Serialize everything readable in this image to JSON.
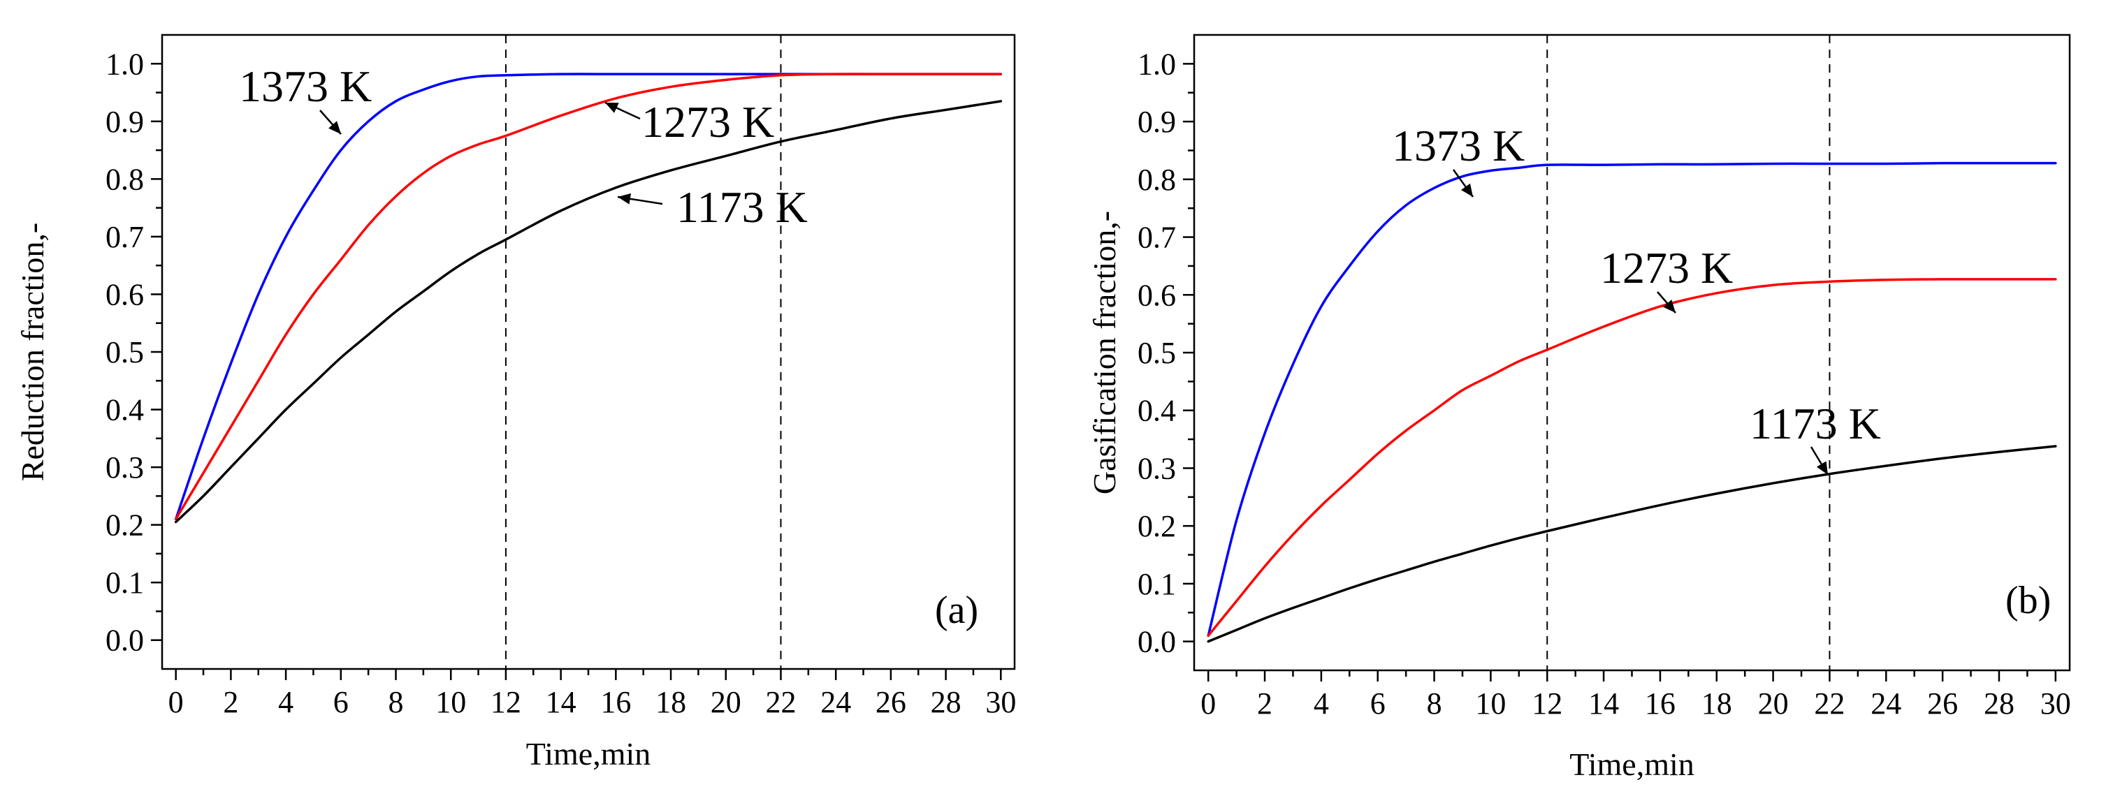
{
  "chart_data": [
    {
      "type": "line",
      "panel_label": "(a)",
      "xlabel": "Time,min",
      "ylabel": "Reduction fraction,-",
      "xlim": [
        -0.5,
        30.5
      ],
      "ylim": [
        -0.05,
        1.05
      ],
      "xticks": [
        0,
        2,
        4,
        6,
        8,
        10,
        12,
        14,
        16,
        18,
        20,
        22,
        24,
        26,
        28,
        30
      ],
      "yticks": [
        0.0,
        0.1,
        0.2,
        0.3,
        0.4,
        0.5,
        0.6,
        0.7,
        0.8,
        0.9,
        1.0
      ],
      "vlines": [
        12,
        22
      ],
      "series": [
        {
          "name": "1373 K",
          "color": "#0000ff",
          "x": [
            0,
            1,
            2,
            3,
            4,
            5,
            6,
            7,
            8,
            9,
            10,
            11,
            12,
            14,
            16,
            18,
            20,
            22,
            24,
            26,
            28,
            30
          ],
          "y": [
            0.21,
            0.35,
            0.48,
            0.6,
            0.7,
            0.78,
            0.85,
            0.9,
            0.935,
            0.955,
            0.97,
            0.978,
            0.98,
            0.982,
            0.982,
            0.982,
            0.982,
            0.982,
            0.982,
            0.982,
            0.982,
            0.982
          ]
        },
        {
          "name": "1273 K",
          "color": "#ff0000",
          "x": [
            0,
            1,
            2,
            3,
            4,
            5,
            6,
            7,
            8,
            9,
            10,
            11,
            12,
            14,
            16,
            18,
            20,
            22,
            24,
            26,
            28,
            30
          ],
          "y": [
            0.21,
            0.29,
            0.37,
            0.45,
            0.53,
            0.6,
            0.66,
            0.72,
            0.77,
            0.81,
            0.84,
            0.86,
            0.875,
            0.91,
            0.94,
            0.96,
            0.972,
            0.98,
            0.982,
            0.982,
            0.982,
            0.982
          ]
        },
        {
          "name": "1173 K",
          "color": "#000000",
          "x": [
            0,
            1,
            2,
            3,
            4,
            5,
            6,
            7,
            8,
            9,
            10,
            11,
            12,
            14,
            16,
            18,
            20,
            22,
            24,
            26,
            28,
            30
          ],
          "y": [
            0.205,
            0.25,
            0.3,
            0.35,
            0.4,
            0.445,
            0.49,
            0.53,
            0.57,
            0.605,
            0.64,
            0.67,
            0.695,
            0.745,
            0.785,
            0.815,
            0.84,
            0.865,
            0.885,
            0.905,
            0.92,
            0.935
          ]
        }
      ],
      "annotations": [
        "1373 K",
        "1273 K",
        "1173 K"
      ]
    },
    {
      "type": "line",
      "panel_label": "(b)",
      "xlabel": "Time,min",
      "ylabel": "Gasification fraction,-",
      "xlim": [
        -0.5,
        30.5
      ],
      "ylim": [
        -0.05,
        1.05
      ],
      "xticks": [
        0,
        2,
        4,
        6,
        8,
        10,
        12,
        14,
        16,
        18,
        20,
        22,
        24,
        26,
        28,
        30
      ],
      "yticks": [
        0.0,
        0.1,
        0.2,
        0.3,
        0.4,
        0.5,
        0.6,
        0.7,
        0.8,
        0.9,
        1.0
      ],
      "vlines": [
        12,
        22
      ],
      "series": [
        {
          "name": "1373 K",
          "color": "#0000ff",
          "x": [
            0,
            1,
            2,
            3,
            4,
            5,
            6,
            7,
            8,
            9,
            10,
            11,
            12,
            14,
            16,
            18,
            20,
            22,
            24,
            26,
            28,
            30
          ],
          "y": [
            0.01,
            0.21,
            0.36,
            0.48,
            0.58,
            0.65,
            0.71,
            0.755,
            0.785,
            0.805,
            0.815,
            0.82,
            0.825,
            0.825,
            0.826,
            0.826,
            0.827,
            0.827,
            0.827,
            0.828,
            0.828,
            0.828
          ]
        },
        {
          "name": "1273 K",
          "color": "#ff0000",
          "x": [
            0,
            1,
            2,
            3,
            4,
            5,
            6,
            7,
            8,
            9,
            10,
            11,
            12,
            14,
            16,
            18,
            20,
            22,
            24,
            26,
            28,
            30
          ],
          "y": [
            0.01,
            0.07,
            0.13,
            0.185,
            0.235,
            0.28,
            0.325,
            0.365,
            0.4,
            0.435,
            0.46,
            0.485,
            0.505,
            0.545,
            0.58,
            0.603,
            0.617,
            0.623,
            0.626,
            0.627,
            0.627,
            0.627
          ]
        },
        {
          "name": "1173 K",
          "color": "#000000",
          "x": [
            0,
            1,
            2,
            3,
            4,
            5,
            6,
            7,
            8,
            9,
            10,
            11,
            12,
            14,
            16,
            18,
            20,
            22,
            24,
            26,
            28,
            30
          ],
          "y": [
            0.0,
            0.02,
            0.04,
            0.058,
            0.075,
            0.092,
            0.108,
            0.123,
            0.138,
            0.152,
            0.166,
            0.179,
            0.191,
            0.214,
            0.236,
            0.256,
            0.274,
            0.29,
            0.304,
            0.317,
            0.328,
            0.338
          ]
        }
      ],
      "annotations": [
        "1373 K",
        "1273 K",
        "1173 K"
      ]
    }
  ]
}
